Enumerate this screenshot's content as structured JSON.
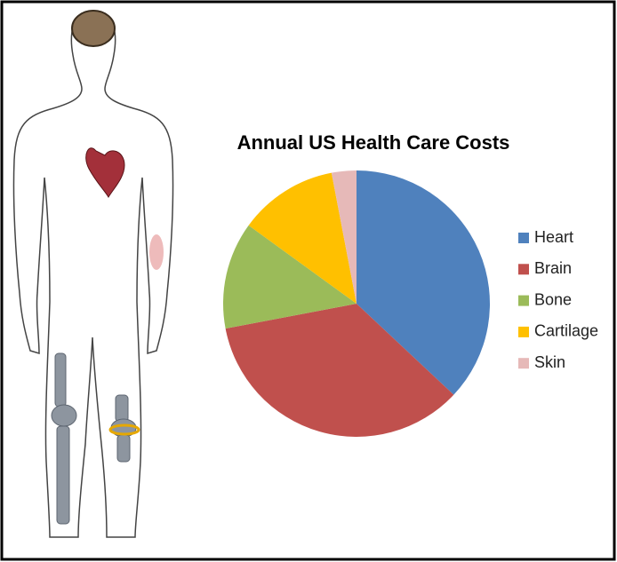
{
  "chart_data": {
    "type": "pie",
    "title": "Annual US Health Care Costs",
    "categories": [
      "Heart",
      "Brain",
      "Bone",
      "Cartilage",
      "Skin"
    ],
    "values": [
      37,
      35,
      13,
      12,
      3
    ],
    "colors": [
      "#4f81bd",
      "#c0504d",
      "#9bbb59",
      "#ffc000",
      "#e6b9b8"
    ],
    "legend": "right"
  }
}
